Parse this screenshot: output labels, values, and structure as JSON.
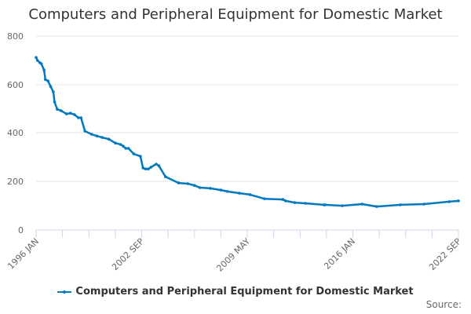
{
  "chart_data": {
    "type": "line",
    "title": "Computers and Peripheral Equipment for Domestic Market",
    "xlabel": "",
    "ylabel": "",
    "ylim": [
      0,
      800
    ],
    "yticks": [
      0,
      200,
      400,
      600,
      800
    ],
    "xticks": [
      "1996 JAN",
      "2002 SEP",
      "2009 MAY",
      "2016 JAN",
      "2022 SEP"
    ],
    "grid": true,
    "legend_position": "bottom",
    "series": [
      {
        "name": "Computers and Peripheral Equipment for Domestic Market",
        "color": "#0079c1",
        "x": [
          "1996-01",
          "1996-02",
          "1996-04",
          "1996-05",
          "1996-07",
          "1996-08",
          "1996-10",
          "1996-12",
          "1997-02",
          "1997-03",
          "1997-05",
          "1997-08",
          "1997-12",
          "1998-03",
          "1998-06",
          "1998-09",
          "1998-11",
          "1999-02",
          "1999-07",
          "1999-11",
          "2000-03",
          "2000-08",
          "2001-01",
          "2001-05",
          "2001-07",
          "2001-09",
          "2001-11",
          "2002-03",
          "2002-08",
          "2002-10",
          "2002-12",
          "2003-02",
          "2003-04",
          "2003-08",
          "2003-10",
          "2004-03",
          "2005-01",
          "2005-08",
          "2006-01",
          "2006-05",
          "2007-01",
          "2007-09",
          "2008-02",
          "2008-11",
          "2009-07",
          "2010-06",
          "2011-08",
          "2011-10",
          "2012-05",
          "2013-01",
          "2014-03",
          "2014-04",
          "2015-05",
          "2016-08",
          "2017-07",
          "2019-01",
          "2020-07",
          "2022-02",
          "2022-09"
        ],
        "values": [
          712,
          700,
          690,
          686,
          660,
          621,
          615,
          592,
          570,
          528,
          498,
          492,
          479,
          482,
          476,
          463,
          463,
          408,
          395,
          388,
          382,
          375,
          359,
          353,
          346,
          337,
          337,
          314,
          304,
          256,
          252,
          252,
          259,
          272,
          265,
          220,
          194,
          191,
          184,
          175,
          172,
          165,
          159,
          152,
          146,
          129,
          126,
          120,
          113,
          110,
          104,
          104,
          100,
          107,
          97,
          104,
          107,
          117,
          120
        ]
      }
    ]
  },
  "chart": {
    "title": "Computers and Peripheral Equipment for Domestic Market",
    "y_tick_labels": [
      "0",
      "200",
      "400",
      "600",
      "800"
    ],
    "x_tick_labels": [
      "1996 JAN",
      "2002 SEP",
      "2009 MAY",
      "2016 JAN",
      "2022 SEP"
    ],
    "legend_label": "Computers and Peripheral Equipment for Domestic Market",
    "source_label": "Source:",
    "line_color": "#0079c1",
    "grid_color": "#e6e6e6",
    "axis_color": "#ccd6eb"
  }
}
